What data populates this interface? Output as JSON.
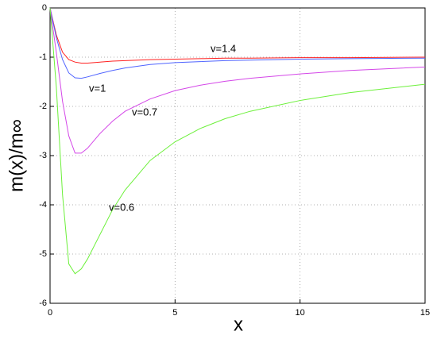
{
  "chart_data": {
    "type": "line",
    "xlabel": "x",
    "ylabel": "m(x)/m∞",
    "x": [
      0,
      0.25,
      0.5,
      0.75,
      1,
      1.25,
      1.5,
      2,
      2.5,
      3,
      4,
      5,
      6,
      7,
      8,
      10,
      12,
      15
    ],
    "series": [
      {
        "name": "v=1.4",
        "color": "#ff2020",
        "values": [
          0,
          -0.55,
          -0.9,
          -1.05,
          -1.1,
          -1.12,
          -1.12,
          -1.1,
          -1.08,
          -1.07,
          -1.05,
          -1.04,
          -1.03,
          -1.02,
          -1.02,
          -1.01,
          -1.01,
          -1.0
        ]
      },
      {
        "name": "v=1",
        "color": "#4f63ff",
        "values": [
          0,
          -0.6,
          -1.05,
          -1.32,
          -1.42,
          -1.43,
          -1.4,
          -1.33,
          -1.27,
          -1.22,
          -1.15,
          -1.11,
          -1.09,
          -1.07,
          -1.06,
          -1.04,
          -1.03,
          -1.02
        ]
      },
      {
        "name": "v=0.7",
        "color": "#d447e8",
        "values": [
          0,
          -0.9,
          -1.9,
          -2.6,
          -2.95,
          -2.95,
          -2.85,
          -2.55,
          -2.3,
          -2.1,
          -1.85,
          -1.68,
          -1.57,
          -1.49,
          -1.43,
          -1.34,
          -1.27,
          -1.2
        ]
      },
      {
        "name": "v=0.6",
        "color": "#6cf03a",
        "values": [
          0,
          -1.6,
          -3.8,
          -5.2,
          -5.4,
          -5.3,
          -5.1,
          -4.6,
          -4.1,
          -3.7,
          -3.1,
          -2.72,
          -2.45,
          -2.25,
          -2.1,
          -1.88,
          -1.72,
          -1.55
        ]
      }
    ],
    "xlim": [
      0,
      15
    ],
    "ylim": [
      -6,
      0
    ],
    "xticks": [
      0,
      5,
      10,
      15
    ],
    "yticks": [
      -6,
      -5,
      -4,
      -3,
      -2,
      -1,
      0
    ],
    "grid": true
  }
}
